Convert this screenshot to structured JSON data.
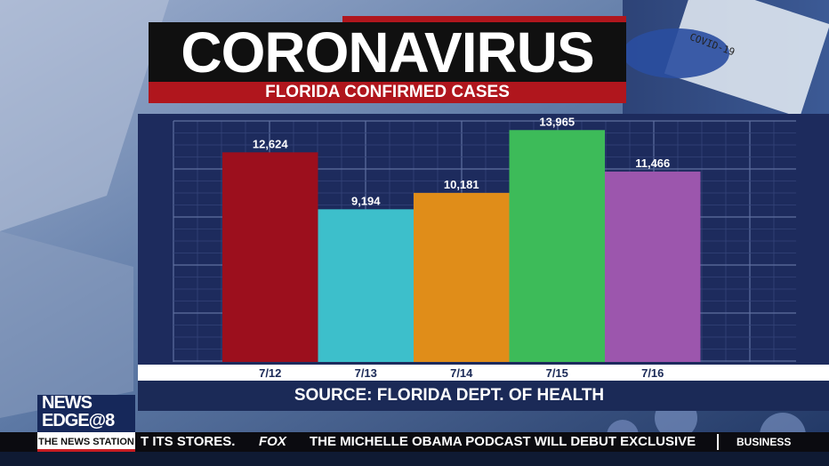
{
  "header": {
    "title": "CORONAVIRUS",
    "subtitle": "FLORIDA CONFIRMED CASES"
  },
  "chart_data": {
    "type": "bar",
    "title": "",
    "xlabel": "",
    "ylabel": "",
    "categories": [
      "7/12",
      "7/13",
      "7/14",
      "7/15",
      "7/16"
    ],
    "values": [
      12624,
      9194,
      10181,
      13965,
      11466
    ],
    "value_labels": [
      "12,624",
      "9,194",
      "10,181",
      "13,965",
      "11,466"
    ],
    "colors": [
      "#9c0f1d",
      "#3dbfcb",
      "#e08d19",
      "#3dbb59",
      "#9c56ad"
    ],
    "ylim": [
      0,
      14300
    ],
    "grid": true
  },
  "source": "SOURCE: FLORIDA DEPT. OF HEALTH",
  "background_label": "COVID-19",
  "logo": {
    "line1": "NEWS",
    "line2": "EDGE@8"
  },
  "ticker": {
    "station": "THE NEWS STATION",
    "left_text": "T ITS STORES.",
    "network": "FOX",
    "headline": "THE MICHELLE OBAMA PODCAST WILL DEBUT EXCLUSIVE",
    "section": "BUSINESS"
  }
}
